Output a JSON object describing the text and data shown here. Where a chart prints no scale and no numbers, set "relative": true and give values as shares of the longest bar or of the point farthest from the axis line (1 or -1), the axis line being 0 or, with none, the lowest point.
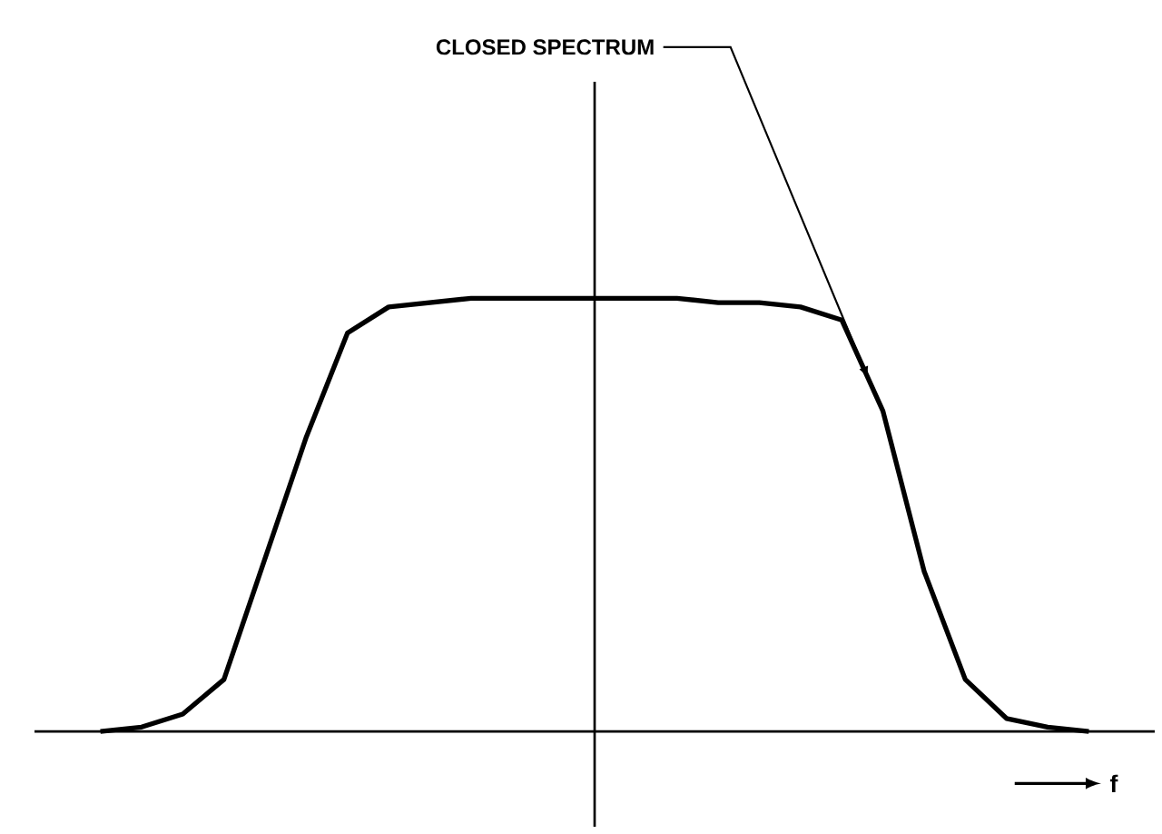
{
  "chart_data": {
    "type": "line",
    "relative": true,
    "color": "#000000",
    "line_style": "solid",
    "xlabel": "f",
    "annotations": [
      "CLOSED SPECTRUM"
    ],
    "categories": [
      null,
      null,
      null,
      null,
      null,
      null,
      null,
      null,
      null,
      null,
      null,
      null,
      null,
      null,
      null,
      null,
      null,
      null,
      null,
      null,
      null,
      null,
      null,
      null,
      null
    ],
    "values": [
      0,
      0.01,
      0.04,
      0.12,
      0.4,
      0.68,
      0.92,
      0.98,
      0.99,
      1,
      1,
      1,
      1,
      1,
      1,
      0.99,
      0.99,
      0.98,
      0.95,
      0.74,
      0.37,
      0.12,
      0.03,
      0.01,
      0
    ]
  }
}
